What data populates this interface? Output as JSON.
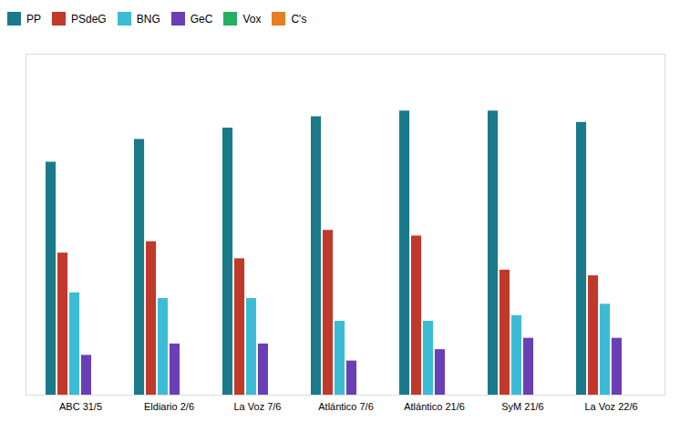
{
  "chart_data": {
    "type": "bar",
    "categories": [
      "ABC 31/5",
      "Eldiario 2/6",
      "La Voz 7/6",
      "Atlántico 7/6",
      "Atlántico 21/6",
      "SyM 21/6",
      "La Voz 22/6"
    ],
    "series": [
      {
        "name": "PP",
        "color": "#1a7a8a",
        "values": [
          41,
          45,
          47,
          49,
          50,
          50,
          48
        ]
      },
      {
        "name": "PSdeG",
        "color": "#c0392b",
        "values": [
          25,
          27,
          24,
          29,
          28,
          22,
          21
        ]
      },
      {
        "name": "BNG",
        "color": "#3bbcd4",
        "values": [
          18,
          17,
          17,
          13,
          13,
          14,
          16
        ]
      },
      {
        "name": "GeC",
        "color": "#6a3fb5",
        "values": [
          7,
          9,
          9,
          6,
          8,
          10,
          10
        ]
      },
      {
        "name": "Vox",
        "color": "#27ae60",
        "values": [
          0,
          0,
          0,
          0,
          0,
          0,
          0
        ]
      },
      {
        "name": "C's",
        "color": "#e67e22",
        "values": [
          0,
          0,
          0,
          0,
          0,
          0,
          0
        ]
      }
    ],
    "ylim": [
      0,
      60
    ],
    "tick_labels": "x",
    "grid": false,
    "legend": "upper left"
  }
}
